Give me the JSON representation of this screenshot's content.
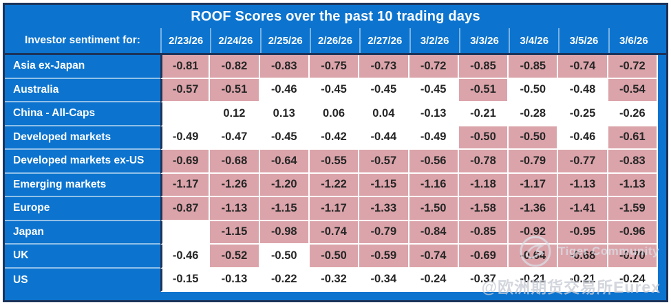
{
  "title": "ROOF Scores over the past 10 trading days",
  "chart_data": {
    "type": "table",
    "title": "ROOF Scores over the past 10 trading days",
    "row_header_label": "Investor sentiment for:",
    "columns": [
      "2/23/26",
      "2/24/26",
      "2/25/26",
      "2/26/26",
      "2/27/26",
      "3/2/26",
      "3/3/26",
      "3/4/26",
      "3/5/26",
      "3/6/26"
    ],
    "rows": [
      {
        "label": "Asia ex-Japan",
        "values": [
          "-0.81",
          "-0.82",
          "-0.83",
          "-0.75",
          "-0.73",
          "-0.72",
          "-0.85",
          "-0.85",
          "-0.74",
          "-0.72"
        ],
        "highlighted": [
          true,
          true,
          true,
          true,
          true,
          true,
          true,
          true,
          true,
          true
        ]
      },
      {
        "label": "Australia",
        "values": [
          "-0.57",
          "-0.51",
          "-0.46",
          "-0.45",
          "-0.45",
          "-0.45",
          "-0.51",
          "-0.50",
          "-0.48",
          "-0.54"
        ],
        "highlighted": [
          true,
          true,
          false,
          false,
          false,
          false,
          true,
          false,
          false,
          true
        ]
      },
      {
        "label": "China - All-Caps",
        "values": [
          "",
          "0.12",
          "0.13",
          "0.06",
          "0.04",
          "-0.13",
          "-0.21",
          "-0.28",
          "-0.25",
          "-0.26"
        ],
        "highlighted": [
          false,
          false,
          false,
          false,
          false,
          false,
          false,
          false,
          false,
          false
        ]
      },
      {
        "label": "Developed markets",
        "values": [
          "-0.49",
          "-0.47",
          "-0.45",
          "-0.42",
          "-0.44",
          "-0.49",
          "-0.50",
          "-0.50",
          "-0.46",
          "-0.61"
        ],
        "highlighted": [
          false,
          false,
          false,
          false,
          false,
          false,
          true,
          true,
          false,
          true
        ]
      },
      {
        "label": "Developed markets ex-US",
        "values": [
          "-0.69",
          "-0.68",
          "-0.64",
          "-0.55",
          "-0.57",
          "-0.56",
          "-0.78",
          "-0.79",
          "-0.77",
          "-0.83"
        ],
        "highlighted": [
          true,
          true,
          true,
          true,
          true,
          true,
          true,
          true,
          true,
          true
        ]
      },
      {
        "label": "Emerging markets",
        "values": [
          "-1.17",
          "-1.26",
          "-1.20",
          "-1.22",
          "-1.15",
          "-1.16",
          "-1.18",
          "-1.17",
          "-1.13",
          "-1.13"
        ],
        "highlighted": [
          true,
          true,
          true,
          true,
          true,
          true,
          true,
          true,
          true,
          true
        ]
      },
      {
        "label": "Europe",
        "values": [
          "-0.87",
          "-1.13",
          "-1.15",
          "-1.17",
          "-1.33",
          "-1.50",
          "-1.58",
          "-1.36",
          "-1.41",
          "-1.59"
        ],
        "highlighted": [
          true,
          true,
          true,
          true,
          true,
          true,
          true,
          true,
          true,
          true
        ]
      },
      {
        "label": "Japan",
        "values": [
          "",
          "-1.15",
          "-0.98",
          "-0.74",
          "-0.79",
          "-0.84",
          "-0.85",
          "-0.92",
          "-0.95",
          "-0.96"
        ],
        "highlighted": [
          false,
          true,
          true,
          true,
          true,
          true,
          true,
          true,
          true,
          true
        ]
      },
      {
        "label": "UK",
        "values": [
          "-0.46",
          "-0.52",
          "-0.50",
          "-0.50",
          "-0.59",
          "-0.74",
          "-0.69",
          "-0.64",
          "-0.68",
          "-0.70"
        ],
        "highlighted": [
          false,
          true,
          false,
          true,
          true,
          true,
          true,
          true,
          true,
          true
        ]
      },
      {
        "label": "US",
        "values": [
          "-0.15",
          "-0.13",
          "-0.22",
          "-0.32",
          "-0.34",
          "-0.24",
          "-0.37",
          "-0.21",
          "-0.21",
          "-0.24"
        ],
        "highlighted": [
          false,
          false,
          false,
          false,
          false,
          false,
          false,
          false,
          false,
          false
        ]
      }
    ],
    "layout_hints": {
      "legend": "off",
      "grid": "white cell borders",
      "highlight_color": "#dba4aa",
      "header_color": "#0c74cf"
    }
  },
  "watermark": {
    "community": "Tiger Community",
    "handle": "@欧洲期货交易所Eurex"
  },
  "colors": {
    "blue": "#0c74cf",
    "navy_border": "#1b335a",
    "pink_highlight": "#dba4aa",
    "value_text": "#262626",
    "cell_border": "#ffffff"
  }
}
